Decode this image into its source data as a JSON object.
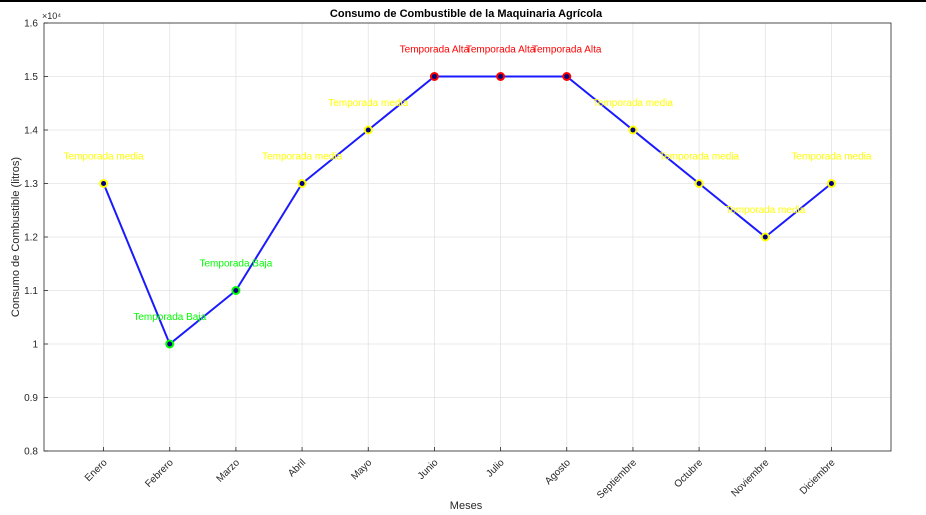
{
  "chart_data": {
    "type": "line",
    "title": "Consumo de Combustible de la Maquinaria Agrícola",
    "xlabel": "Meses",
    "ylabel": "Consumo de Combustible (litros)",
    "exponent_label": "×10⁴",
    "categories": [
      "Enero",
      "Febrero",
      "Marzo",
      "Abril",
      "Mayo",
      "Junio",
      "Julio",
      "Agosto",
      "Septiembre",
      "Octubre",
      "Noviembre",
      "Diciembre"
    ],
    "values": [
      1.3,
      1.0,
      1.1,
      1.3,
      1.4,
      1.5,
      1.5,
      1.5,
      1.4,
      1.3,
      1.2,
      1.3
    ],
    "value_scale": 10000,
    "ylim": [
      0.8,
      1.6
    ],
    "yticks": [
      0.8,
      0.9,
      1.0,
      1.1,
      1.2,
      1.3,
      1.4,
      1.5,
      1.6
    ],
    "ytick_labels": [
      "0.8",
      "0.9",
      "1",
      "1.1",
      "1.2",
      "1.3",
      "1.4",
      "1.5",
      "1.6"
    ],
    "grid": true,
    "line_color": "#1a1aff",
    "marker_fill": "#000080",
    "annotations": [
      "Temporada media",
      "Temporada Baja",
      "Temporada Baja",
      "Temporada media",
      "Temporada media",
      "Temporada Alta",
      "Temporada Alta",
      "Temporada Alta",
      "Temporada media",
      "Temporada media",
      "Temporada media",
      "Temporada media"
    ],
    "season_colors": {
      "Temporada Alta": "#ff0000",
      "Temporada media": "#ffff00",
      "Temporada Baja": "#00ff00"
    }
  }
}
